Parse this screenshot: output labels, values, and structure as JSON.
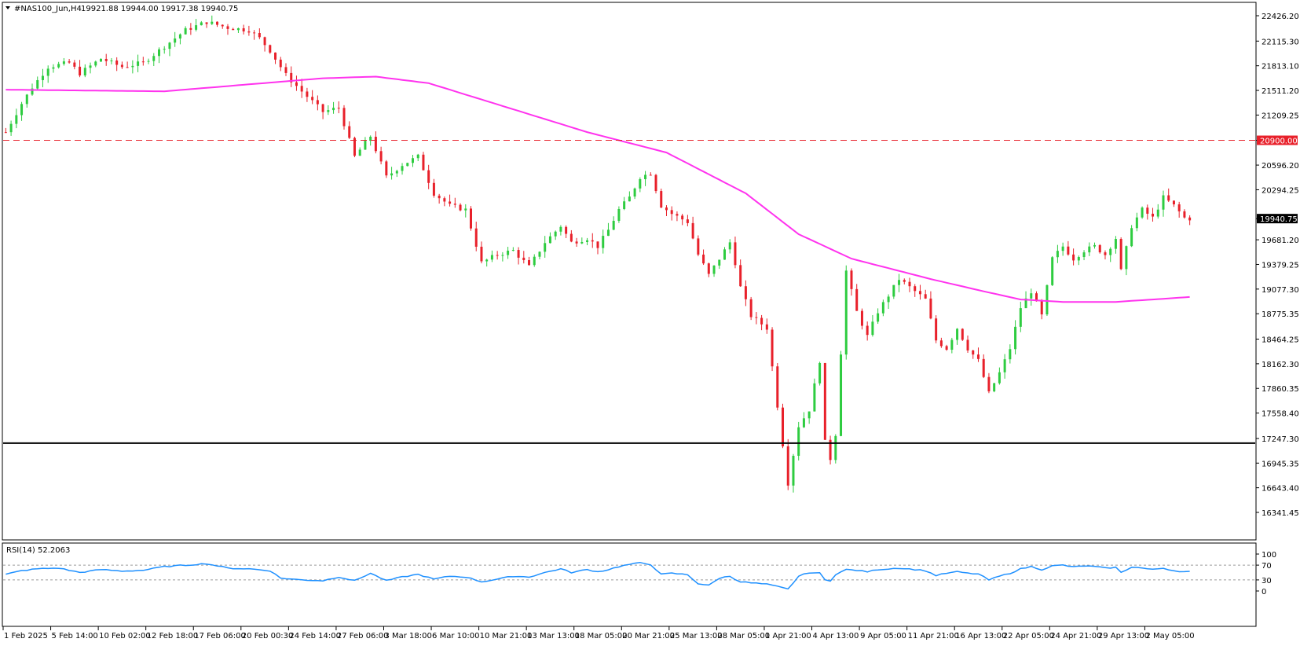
{
  "header": {
    "symbol": "#NAS100_Jun,H4",
    "ohlc": "19921.88 19944.00 19917.38 19940.75"
  },
  "colors": {
    "bull": "#2ecc40",
    "bear": "#e8202a",
    "ma": "#ff33ee",
    "rsi": "#1e90ff",
    "resistance": "#e8202a",
    "support": "#000000",
    "price_tag_bg": "#000000",
    "level_tag_bg": "#e8202a"
  },
  "chart_data": [
    {
      "type": "candlestick",
      "name": "price",
      "timeframe": "H4",
      "ylim": [
        16341.45,
        22426.2
      ],
      "price_ticks": [
        "22426.20",
        "22115.30",
        "21813.10",
        "21511.20",
        "21209.25",
        "20900.00",
        "20596.20",
        "20294.25",
        "19940.75",
        "19681.20",
        "19379.25",
        "19077.30",
        "18775.35",
        "18464.25",
        "18162.30",
        "17860.35",
        "17558.40",
        "17247.30",
        "16945.35",
        "16643.40",
        "16341.45"
      ],
      "current_price": "19940.75",
      "horizontal_lines": [
        {
          "label": "20900.00",
          "price": 20900.0,
          "style": "dashed"
        },
        {
          "price": 17190.0,
          "style": "solid"
        }
      ],
      "time_labels": [
        "1 Feb 2025",
        "5 Feb 14:00",
        "10 Feb 02:00",
        "12 Feb 18:00",
        "17 Feb 06:00",
        "20 Feb 00:30",
        "24 Feb 14:00",
        "27 Feb 06:00",
        "3 Mar 18:00",
        "6 Mar 10:00",
        "10 Mar 21:00",
        "13 Mar 13:00",
        "18 Mar 05:00",
        "20 Mar 21:00",
        "25 Mar 13:00",
        "28 Mar 05:00",
        "1 Apr 21:00",
        "4 Apr 13:00",
        "9 Apr 05:00",
        "11 Apr 21:00",
        "16 Apr 13:00",
        "22 Apr 05:00",
        "24 Apr 21:00",
        "29 Apr 13:00",
        "2 May 05:00"
      ],
      "path_anchors": [
        [
          0,
          21000
        ],
        [
          3,
          21350
        ],
        [
          5,
          21550
        ],
        [
          8,
          21800
        ],
        [
          12,
          21850
        ],
        [
          14,
          21720
        ],
        [
          18,
          21900
        ],
        [
          22,
          21800
        ],
        [
          26,
          21850
        ],
        [
          30,
          22050
        ],
        [
          34,
          22250
        ],
        [
          38,
          22350
        ],
        [
          42,
          22280
        ],
        [
          46,
          22250
        ],
        [
          48,
          22150
        ],
        [
          50,
          22000
        ],
        [
          53,
          21700
        ],
        [
          56,
          21500
        ],
        [
          60,
          21250
        ],
        [
          63,
          21300
        ],
        [
          66,
          20700
        ],
        [
          69,
          20950
        ],
        [
          72,
          20450
        ],
        [
          75,
          20600
        ],
        [
          78,
          20700
        ],
        [
          81,
          20250
        ],
        [
          84,
          20100
        ],
        [
          87,
          20050
        ],
        [
          90,
          19400
        ],
        [
          93,
          19500
        ],
        [
          96,
          19550
        ],
        [
          99,
          19350
        ],
        [
          102,
          19650
        ],
        [
          105,
          19850
        ],
        [
          107,
          19650
        ],
        [
          110,
          19700
        ],
        [
          112,
          19600
        ],
        [
          114,
          19800
        ],
        [
          116,
          20050
        ],
        [
          118,
          20200
        ],
        [
          120,
          20450
        ],
        [
          122,
          20500
        ],
        [
          124,
          20100
        ],
        [
          126,
          20000
        ],
        [
          129,
          19900
        ],
        [
          131,
          19500
        ],
        [
          133,
          19250
        ],
        [
          135,
          19450
        ],
        [
          137,
          19650
        ],
        [
          138,
          19400
        ],
        [
          139,
          19100
        ],
        [
          141,
          18750
        ],
        [
          144,
          18600
        ],
        [
          146,
          17650
        ],
        [
          148,
          16700
        ],
        [
          150,
          17400
        ],
        [
          152,
          17600
        ],
        [
          154,
          18200
        ],
        [
          155,
          17200
        ],
        [
          156,
          17000
        ],
        [
          157,
          17300
        ],
        [
          159,
          19300
        ],
        [
          161,
          18800
        ],
        [
          163,
          18500
        ],
        [
          165,
          18800
        ],
        [
          167,
          19000
        ],
        [
          169,
          19200
        ],
        [
          172,
          19050
        ],
        [
          174,
          18950
        ],
        [
          176,
          18450
        ],
        [
          178,
          18350
        ],
        [
          180,
          18600
        ],
        [
          182,
          18350
        ],
        [
          184,
          18200
        ],
        [
          186,
          17800
        ],
        [
          188,
          18050
        ],
        [
          190,
          18350
        ],
        [
          192,
          18850
        ],
        [
          194,
          19050
        ],
        [
          196,
          18750
        ],
        [
          198,
          19450
        ],
        [
          200,
          19600
        ],
        [
          202,
          19450
        ],
        [
          204,
          19550
        ],
        [
          206,
          19600
        ],
        [
          208,
          19500
        ],
        [
          210,
          19700
        ],
        [
          211,
          19300
        ],
        [
          213,
          19850
        ],
        [
          215,
          20050
        ],
        [
          217,
          19950
        ],
        [
          219,
          20200
        ],
        [
          221,
          20100
        ],
        [
          223,
          19950
        ],
        [
          224,
          19940.75
        ]
      ],
      "moving_average_path": [
        [
          0,
          21520
        ],
        [
          30,
          21500
        ],
        [
          60,
          21660
        ],
        [
          70,
          21680
        ],
        [
          80,
          21600
        ],
        [
          90,
          21400
        ],
        [
          110,
          21000
        ],
        [
          125,
          20750
        ],
        [
          140,
          20250
        ],
        [
          150,
          19750
        ],
        [
          160,
          19450
        ],
        [
          175,
          19200
        ],
        [
          185,
          19050
        ],
        [
          192,
          18950
        ],
        [
          200,
          18920
        ],
        [
          210,
          18920
        ],
        [
          224,
          18980
        ]
      ]
    },
    {
      "type": "line",
      "name": "rsi",
      "title": "RSI(14) 52.2063",
      "ylim": [
        0,
        100
      ],
      "ticks": [
        "100",
        "70",
        "30",
        "0"
      ],
      "levels": [
        70,
        30
      ],
      "values": [
        [
          0,
          45
        ],
        [
          3,
          55
        ],
        [
          6,
          60
        ],
        [
          10,
          62
        ],
        [
          14,
          50
        ],
        [
          18,
          58
        ],
        [
          22,
          54
        ],
        [
          26,
          56
        ],
        [
          30,
          66
        ],
        [
          34,
          70
        ],
        [
          38,
          74
        ],
        [
          42,
          62
        ],
        [
          46,
          60
        ],
        [
          50,
          55
        ],
        [
          52,
          35
        ],
        [
          56,
          30
        ],
        [
          60,
          28
        ],
        [
          63,
          38
        ],
        [
          66,
          28
        ],
        [
          69,
          48
        ],
        [
          72,
          28
        ],
        [
          75,
          38
        ],
        [
          78,
          45
        ],
        [
          81,
          32
        ],
        [
          84,
          40
        ],
        [
          87,
          38
        ],
        [
          90,
          25
        ],
        [
          93,
          32
        ],
        [
          96,
          40
        ],
        [
          99,
          38
        ],
        [
          102,
          50
        ],
        [
          105,
          60
        ],
        [
          107,
          50
        ],
        [
          110,
          58
        ],
        [
          112,
          52
        ],
        [
          114,
          58
        ],
        [
          116,
          66
        ],
        [
          118,
          72
        ],
        [
          120,
          76
        ],
        [
          122,
          72
        ],
        [
          124,
          45
        ],
        [
          126,
          48
        ],
        [
          129,
          44
        ],
        [
          131,
          20
        ],
        [
          133,
          15
        ],
        [
          135,
          35
        ],
        [
          137,
          40
        ],
        [
          138,
          32
        ],
        [
          139,
          25
        ],
        [
          141,
          22
        ],
        [
          144,
          18
        ],
        [
          146,
          12
        ],
        [
          148,
          5
        ],
        [
          150,
          40
        ],
        [
          152,
          50
        ],
        [
          154,
          48
        ],
        [
          155,
          30
        ],
        [
          156,
          28
        ],
        [
          157,
          45
        ],
        [
          159,
          58
        ],
        [
          161,
          56
        ],
        [
          163,
          52
        ],
        [
          165,
          58
        ],
        [
          167,
          60
        ],
        [
          169,
          62
        ],
        [
          172,
          58
        ],
        [
          174,
          55
        ],
        [
          176,
          42
        ],
        [
          178,
          48
        ],
        [
          180,
          52
        ],
        [
          182,
          48
        ],
        [
          184,
          46
        ],
        [
          186,
          30
        ],
        [
          188,
          40
        ],
        [
          190,
          48
        ],
        [
          192,
          60
        ],
        [
          194,
          66
        ],
        [
          196,
          58
        ],
        [
          198,
          68
        ],
        [
          200,
          70
        ],
        [
          202,
          65
        ],
        [
          204,
          68
        ],
        [
          206,
          66
        ],
        [
          208,
          62
        ],
        [
          210,
          64
        ],
        [
          211,
          50
        ],
        [
          213,
          65
        ],
        [
          215,
          62
        ],
        [
          217,
          58
        ],
        [
          219,
          62
        ],
        [
          221,
          55
        ],
        [
          223,
          52
        ],
        [
          224,
          52.2
        ]
      ]
    }
  ]
}
